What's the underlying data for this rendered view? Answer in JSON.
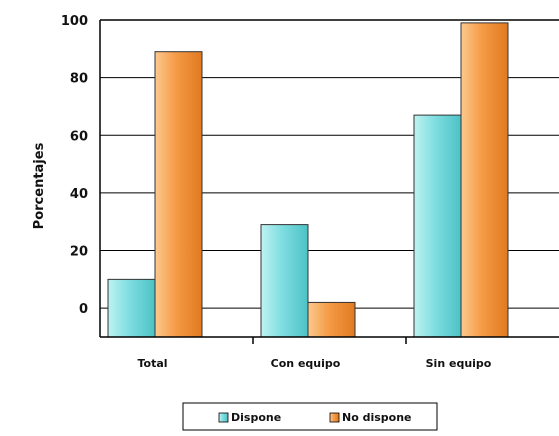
{
  "chart_data": {
    "type": "bar",
    "title": "",
    "xlabel": "",
    "ylabel": "Porcentajes",
    "categories": [
      "Total",
      "Con equipo",
      "Sin equipo"
    ],
    "series": [
      {
        "name": "Dispone",
        "values": [
          10,
          29,
          67
        ],
        "color": "#7fdde0"
      },
      {
        "name": "No dispone",
        "values": [
          89,
          2,
          99
        ],
        "color": "#f5a04e"
      }
    ],
    "ylim": [
      -10,
      100
    ],
    "yticks": [
      0,
      20,
      40,
      60,
      80,
      100
    ],
    "grid": true,
    "legend_position": "bottom"
  }
}
